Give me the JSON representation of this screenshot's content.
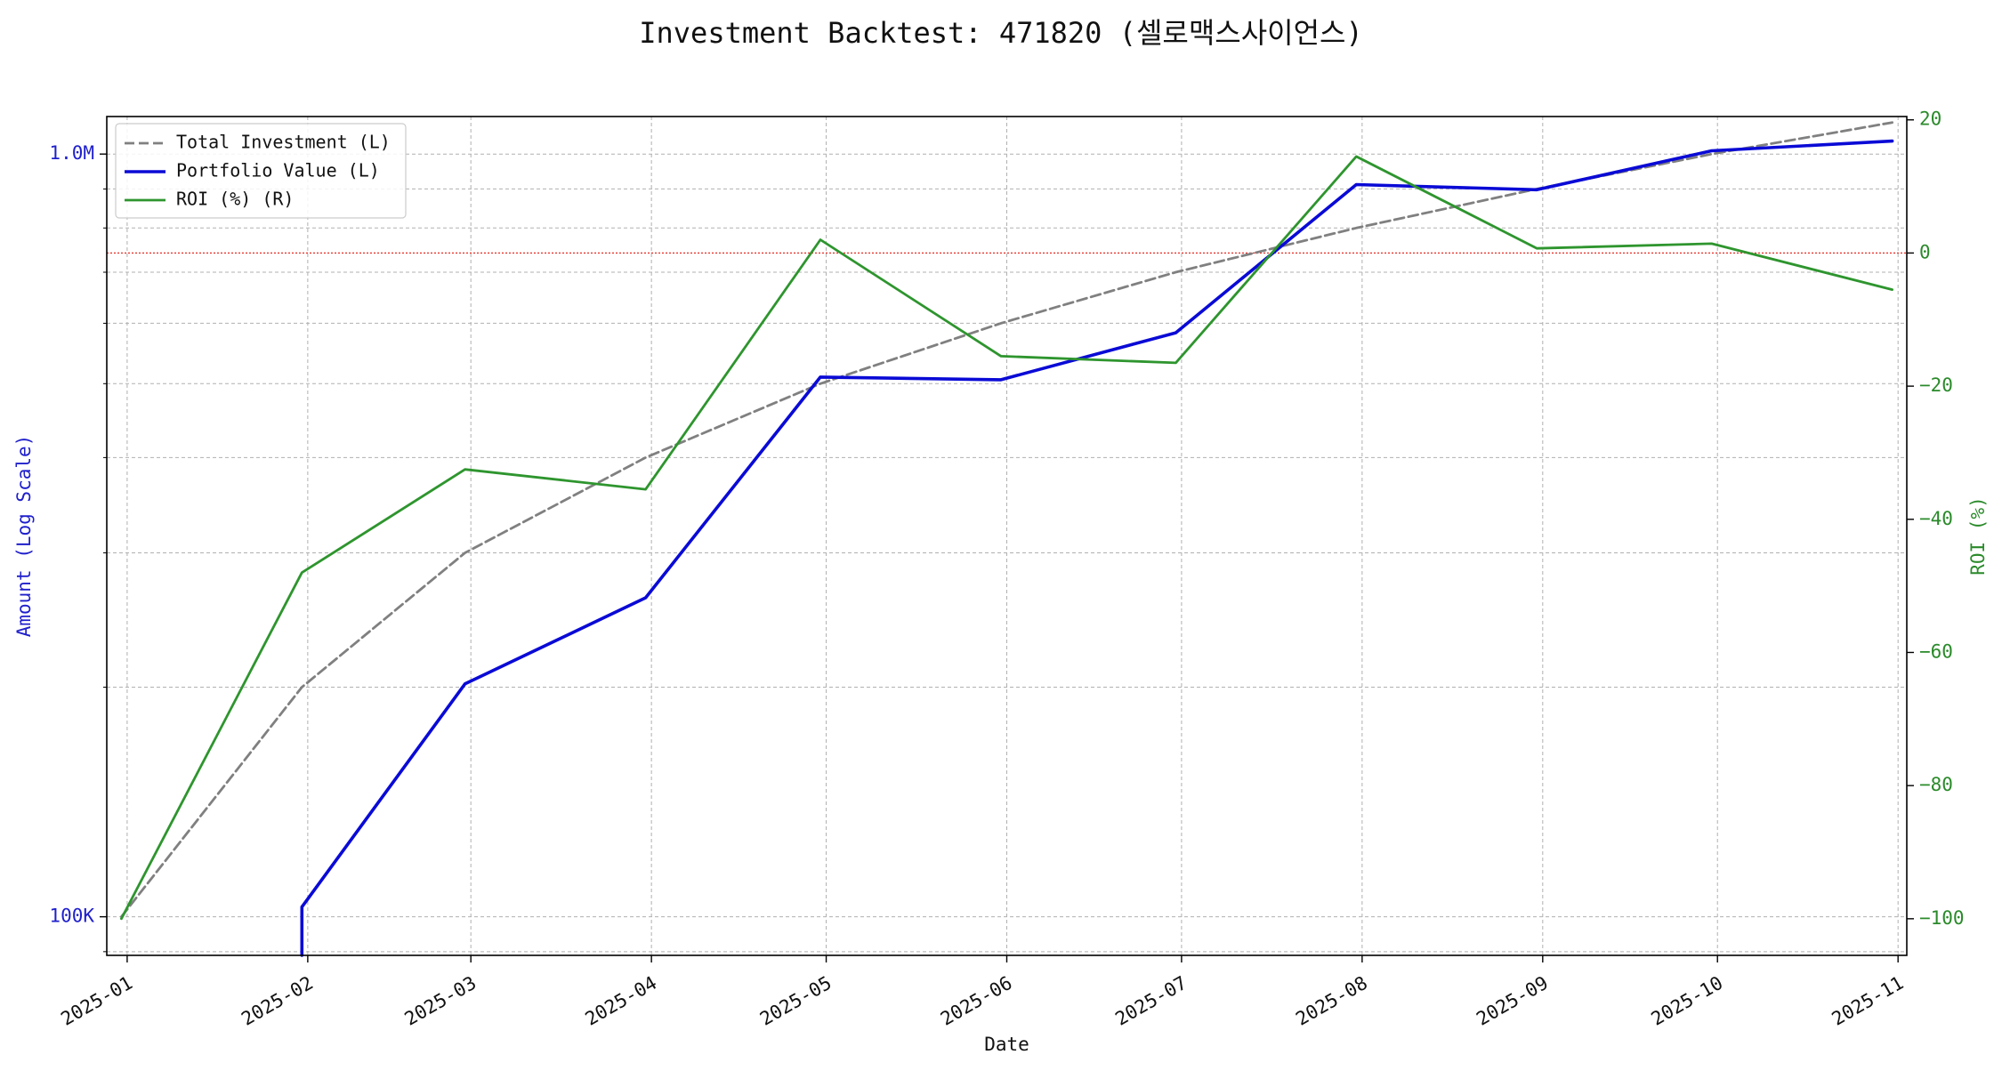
{
  "chart_data": {
    "type": "line",
    "title": "Investment Backtest: 471820 (셀로맥스사이언스)",
    "xlabel": "Date",
    "ylabel_left": "Amount (Log Scale)",
    "ylabel_right": "ROI (%)",
    "x_ticks": [
      "2025-01",
      "2025-02",
      "2025-03",
      "2025-04",
      "2025-05",
      "2025-06",
      "2025-07",
      "2025-08",
      "2025-09",
      "2025-10",
      "2025-11"
    ],
    "y_left_scale": "log",
    "y_left_ticks": [
      {
        "value": 100000,
        "label": "100K"
      },
      {
        "value": 1000000,
        "label": "1.0M"
      }
    ],
    "y_left_range": [
      89000,
      1120000
    ],
    "y_right_ticks": [
      -100,
      -80,
      -60,
      -40,
      -20,
      0,
      20
    ],
    "y_right_range": [
      -105.5,
      20.5
    ],
    "reference_line": {
      "axis": "right",
      "value": 0,
      "color": "#e8352e"
    },
    "grid": true,
    "legend_position": "top-left",
    "colors": {
      "left_axis": "#1f1fcc",
      "right_axis": "#2a8a2a",
      "total_investment": "#808080",
      "portfolio_value": "#0a0ad6",
      "roi": "#2e952e"
    },
    "series": [
      {
        "name": "Total Investment (L)",
        "axis": "left",
        "style": "dashed",
        "x": [
          "2024-12-31",
          "2025-01-31",
          "2025-02-28",
          "2025-03-31",
          "2025-04-30",
          "2025-05-31",
          "2025-06-30",
          "2025-07-31",
          "2025-08-31",
          "2025-09-30",
          "2025-10-31"
        ],
        "y": [
          100000,
          200000,
          300000,
          400000,
          500000,
          600000,
          700000,
          800000,
          900000,
          1000000,
          1100000
        ]
      },
      {
        "name": "Portfolio Value (L)",
        "axis": "left",
        "style": "solid",
        "x": [
          "2025-01-31",
          "2025-01-31",
          "2025-02-28",
          "2025-03-31",
          "2025-04-30",
          "2025-05-31",
          "2025-06-30",
          "2025-07-31",
          "2025-08-31",
          "2025-09-30",
          "2025-10-31"
        ],
        "y": [
          89000,
          103000,
          202000,
          262000,
          510000,
          506000,
          583000,
          912000,
          898000,
          1010000,
          1040000
        ]
      },
      {
        "name": "ROI (%) (R)",
        "axis": "right",
        "style": "solid",
        "x": [
          "2024-12-31",
          "2025-01-31",
          "2025-02-28",
          "2025-03-31",
          "2025-04-30",
          "2025-05-31",
          "2025-06-30",
          "2025-07-31",
          "2025-08-31",
          "2025-09-30",
          "2025-10-31"
        ],
        "y": [
          -100,
          -48,
          -32.5,
          -35.5,
          2,
          -15.5,
          -16.5,
          14.5,
          0.7,
          1.4,
          -5.5
        ]
      }
    ]
  }
}
